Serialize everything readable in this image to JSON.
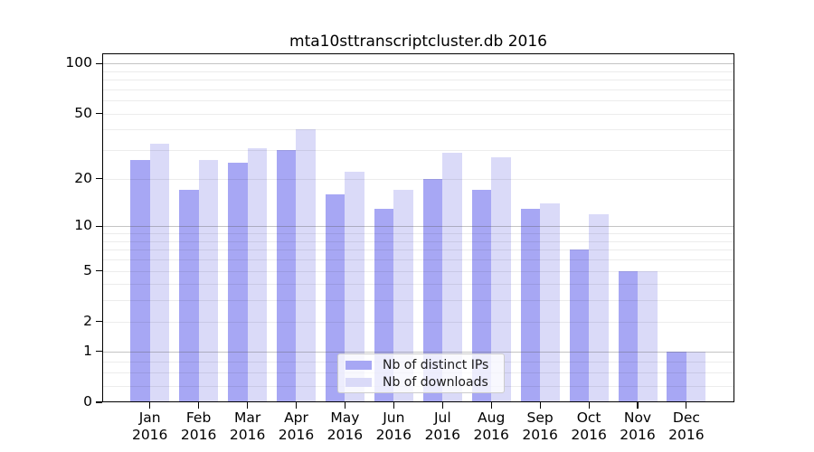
{
  "chart_data": {
    "type": "bar",
    "title": "mta10sttranscriptcluster.db 2016",
    "y_scale": "log10(value+1)",
    "ylabel": "",
    "xlabel": "",
    "y_ticks": [
      100,
      50,
      20,
      10,
      5,
      2,
      1,
      0
    ],
    "ylim": [
      0,
      115
    ],
    "grid": {
      "enabled": true,
      "major_values": [
        1,
        10,
        100
      ],
      "minor_values": [
        0.25,
        0.5,
        0.75,
        2,
        3,
        4,
        5,
        6,
        7,
        8,
        9,
        20,
        30,
        40,
        50,
        60,
        70,
        80,
        90
      ]
    },
    "categories": [
      {
        "month": "Jan",
        "year": "2016"
      },
      {
        "month": "Feb",
        "year": "2016"
      },
      {
        "month": "Mar",
        "year": "2016"
      },
      {
        "month": "Apr",
        "year": "2016"
      },
      {
        "month": "May",
        "year": "2016"
      },
      {
        "month": "Jun",
        "year": "2016"
      },
      {
        "month": "Jul",
        "year": "2016"
      },
      {
        "month": "Aug",
        "year": "2016"
      },
      {
        "month": "Sep",
        "year": "2016"
      },
      {
        "month": "Oct",
        "year": "2016"
      },
      {
        "month": "Nov",
        "year": "2016"
      },
      {
        "month": "Dec",
        "year": "2016"
      }
    ],
    "series": [
      {
        "name": "Nb of distinct IPs",
        "color": "#a7a7f4",
        "values": [
          26,
          17,
          25,
          30,
          16,
          13,
          20,
          17,
          13,
          7,
          5,
          1
        ]
      },
      {
        "name": "Nb of downloads",
        "color": "#dadaf8",
        "values": [
          33,
          26,
          31,
          40,
          22,
          17,
          29,
          27,
          14,
          12,
          5,
          1
        ]
      }
    ],
    "legend_position": "bottom-center"
  }
}
